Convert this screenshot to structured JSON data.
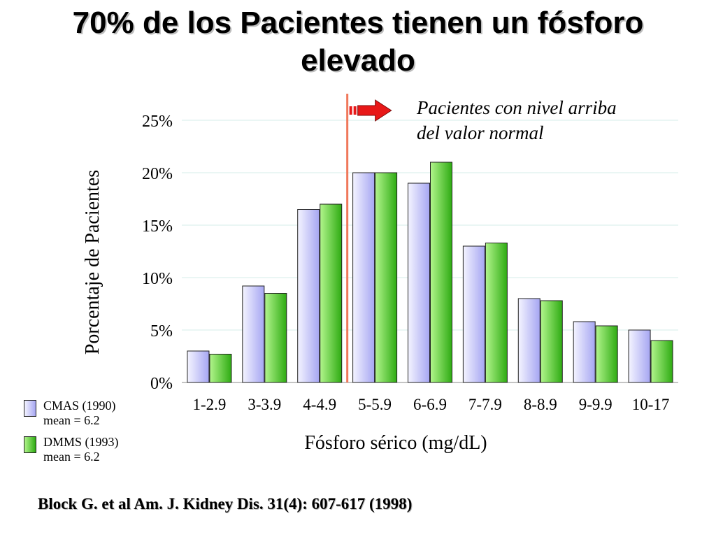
{
  "title": {
    "line1": "70% de los Pacientes tienen un fósforo",
    "line2": "elevado"
  },
  "annotation": {
    "line1": "Pacientes con nivel arriba",
    "line2": "del valor normal"
  },
  "citation": "Block G.  et al Am. J. Kidney Dis. 31(4): 607-617 (1998)",
  "legend": [
    {
      "name": "CMAS (1990)",
      "note": "mean = 6.2",
      "color": "#c4c4ff"
    },
    {
      "name": "DMMS (1993)",
      "note": "mean = 6.2",
      "color": "#5ed43c"
    }
  ],
  "colors": {
    "series1_light": "#f4f4ff",
    "series1_dark": "#a6a6f2",
    "series2_light": "#b2f58c",
    "series2_dark": "#2eab12",
    "reference_line": "#f0785a",
    "arrow": "#e81818",
    "gridline": "#d6ece8"
  },
  "chart_data": {
    "type": "bar",
    "categories": [
      "1-2.9",
      "3-3.9",
      "4-4.9",
      "5-5.9",
      "6-6.9",
      "7-7.9",
      "8-8.9",
      "9-9.9",
      "10-17"
    ],
    "series": [
      {
        "name": "CMAS (1990)",
        "values": [
          3.0,
          9.2,
          16.5,
          20.0,
          19.0,
          13.0,
          8.0,
          5.8,
          5.0
        ]
      },
      {
        "name": "DMMS (1993)",
        "values": [
          2.7,
          8.5,
          17.0,
          20.0,
          21.0,
          13.3,
          7.8,
          5.4,
          4.0
        ]
      }
    ],
    "xlabel": "Fósforo sérico (mg/dL)",
    "ylabel": "Porcentaje de Pacientes",
    "ylim": [
      0,
      25
    ],
    "yticks": [
      "0%",
      "5%",
      "10%",
      "15%",
      "20%",
      "25%"
    ],
    "ytick_values": [
      0,
      5,
      10,
      15,
      20,
      25
    ],
    "grid": true,
    "reference_line_between": [
      "4-4.9",
      "5-5.9"
    ],
    "legend_position": "bottom-left"
  }
}
